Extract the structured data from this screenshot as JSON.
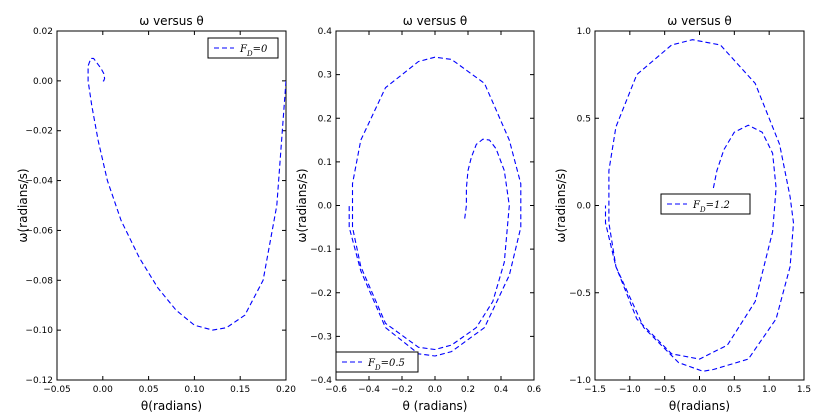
{
  "chart_data": [
    {
      "type": "line",
      "title": "ω versus θ",
      "xlabel": "θ(radians)",
      "ylabel": "ω(radians/s)",
      "xlim": [
        -0.05,
        0.2
      ],
      "ylim": [
        -0.12,
        0.02
      ],
      "xticks": [
        "−0.05",
        "0.00",
        "0.05",
        "0.10",
        "0.15",
        "0.20"
      ],
      "yticks": [
        "−0.12",
        "−0.10",
        "−0.08",
        "−0.06",
        "−0.04",
        "−0.02",
        "0.00",
        "0.02"
      ],
      "legend_location": "upper right",
      "series": [
        {
          "name": "F_D = 0",
          "color": "#0000ff",
          "style": "dashed",
          "x": [
            0.2,
            0.19,
            0.175,
            0.155,
            0.135,
            0.12,
            0.1,
            0.08,
            0.06,
            0.04,
            0.02,
            0.005,
            -0.005,
            -0.012,
            -0.016,
            -0.016,
            -0.013,
            -0.01,
            -0.006,
            -0.002,
            0.001,
            0.002,
            0.001,
            0.0
          ],
          "y": [
            0.0,
            -0.05,
            -0.08,
            -0.094,
            -0.099,
            -0.1,
            -0.098,
            -0.092,
            -0.083,
            -0.071,
            -0.056,
            -0.04,
            -0.024,
            -0.01,
            0.0,
            0.006,
            0.009,
            0.009,
            0.007,
            0.005,
            0.003,
            0.001,
            0.0,
            0.0
          ]
        }
      ]
    },
    {
      "type": "line",
      "title": "ω versus θ",
      "xlabel": "θ (radians)",
      "ylabel": "ω(radians/s)",
      "xlim": [
        -0.6,
        0.6
      ],
      "ylim": [
        -0.4,
        0.4
      ],
      "xticks": [
        "−0.6",
        "−0.4",
        "−0.2",
        "0.0",
        "0.2",
        "0.4",
        "0.6"
      ],
      "yticks": [
        "−0.4",
        "−0.3",
        "−0.2",
        "−0.1",
        "0.0",
        "0.1",
        "0.2",
        "0.3",
        "0.4"
      ],
      "legend_location": "lower left",
      "series": [
        {
          "name": "F_D = 0.5",
          "color": "#0000ff",
          "style": "dashed",
          "x": [
            0.18,
            0.19,
            0.19,
            0.2,
            0.22,
            0.25,
            0.29,
            0.33,
            0.37,
            0.42,
            0.45,
            0.42,
            0.35,
            0.25,
            0.1,
            0.0,
            -0.1,
            -0.3,
            -0.45,
            -0.5,
            -0.5,
            -0.45,
            -0.3,
            -0.1,
            0.0,
            0.1,
            0.3,
            0.45,
            0.52,
            0.52,
            0.45,
            0.3,
            0.1,
            0.0,
            -0.1,
            -0.3,
            -0.45,
            -0.52,
            -0.52
          ],
          "y": [
            -0.03,
            0.0,
            0.04,
            0.08,
            0.11,
            0.14,
            0.152,
            0.15,
            0.13,
            0.08,
            0.0,
            -0.13,
            -0.22,
            -0.28,
            -0.32,
            -0.33,
            -0.325,
            -0.27,
            -0.14,
            -0.05,
            0.05,
            0.15,
            0.27,
            0.33,
            0.34,
            0.335,
            0.28,
            0.15,
            0.05,
            -0.05,
            -0.16,
            -0.28,
            -0.335,
            -0.345,
            -0.34,
            -0.28,
            -0.15,
            -0.05,
            0.0
          ]
        }
      ]
    },
    {
      "type": "line",
      "title": "ω versus θ",
      "xlabel": "θ(radians)",
      "ylabel": "ω(radians/s)",
      "xlim": [
        -1.5,
        1.5
      ],
      "ylim": [
        -1.0,
        1.0
      ],
      "xticks": [
        "−1.5",
        "−1.0",
        "−0.5",
        "0.0",
        "0.5",
        "1.0",
        "1.5"
      ],
      "yticks": [
        "−1.0",
        "−0.5",
        "0.0",
        "0.5",
        "1.0"
      ],
      "legend_location": "center left",
      "series": [
        {
          "name": "F_D = 1.2",
          "color": "#0000ff",
          "style": "dashed",
          "x": [
            0.2,
            0.25,
            0.35,
            0.5,
            0.7,
            0.9,
            1.05,
            1.1,
            1.05,
            0.8,
            0.4,
            0.0,
            -0.4,
            -0.9,
            -1.2,
            -1.3,
            -1.3,
            -1.2,
            -0.9,
            -0.4,
            -0.1,
            0.3,
            0.8,
            1.15,
            1.3,
            1.35,
            1.3,
            1.1,
            0.7,
            0.2,
            0.05,
            -0.3,
            -0.8,
            -1.2,
            -1.35,
            -1.35
          ],
          "y": [
            0.1,
            0.2,
            0.32,
            0.42,
            0.46,
            0.42,
            0.3,
            0.1,
            -0.15,
            -0.55,
            -0.8,
            -0.88,
            -0.85,
            -0.65,
            -0.35,
            -0.1,
            0.2,
            0.45,
            0.75,
            0.92,
            0.95,
            0.92,
            0.7,
            0.35,
            0.05,
            -0.1,
            -0.35,
            -0.65,
            -0.88,
            -0.94,
            -0.95,
            -0.9,
            -0.7,
            -0.35,
            -0.1,
            0.0
          ]
        }
      ]
    }
  ]
}
